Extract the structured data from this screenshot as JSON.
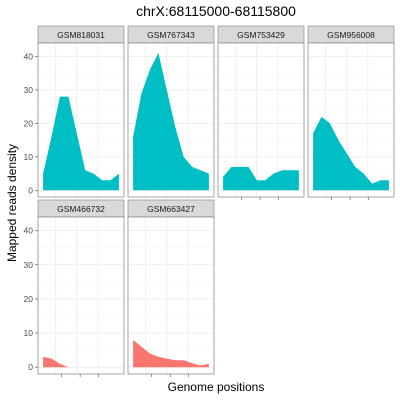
{
  "chart_data": {
    "type": "area",
    "title": "chrX:68115000-68115800",
    "xlabel": "Genome positions",
    "ylabel": "Mapped reads density",
    "ylim": [
      -2,
      44
    ],
    "y_ticks": [
      0,
      10,
      20,
      30,
      40
    ],
    "x": [
      0,
      1,
      2,
      3,
      4,
      5,
      6,
      7,
      8,
      9
    ],
    "grid": true,
    "colors": {
      "group1": "#00BFC4",
      "group2": "#F8766D"
    },
    "panels": [
      {
        "name": "GSM818031",
        "group": "group1",
        "values": [
          5,
          16,
          28,
          28,
          17,
          6,
          5,
          3,
          3,
          5
        ]
      },
      {
        "name": "GSM767343",
        "group": "group1",
        "values": [
          16,
          29,
          36,
          41,
          30,
          19,
          10,
          7,
          6,
          5
        ]
      },
      {
        "name": "GSM753429",
        "group": "group1",
        "values": [
          4,
          7,
          7,
          7,
          3,
          3,
          5,
          6,
          6,
          6
        ]
      },
      {
        "name": "GSM956008",
        "group": "group1",
        "values": [
          17,
          22,
          20,
          15,
          11,
          7,
          5,
          2,
          3,
          3
        ]
      },
      {
        "name": "GSM466732",
        "group": "group2",
        "values": [
          3,
          2.5,
          1,
          0,
          0,
          0,
          0,
          0,
          0,
          0
        ]
      },
      {
        "name": "GSM663427",
        "group": "group2",
        "values": [
          8,
          6,
          4,
          3,
          2.5,
          2,
          2,
          1.2,
          0.5,
          1
        ]
      }
    ]
  }
}
